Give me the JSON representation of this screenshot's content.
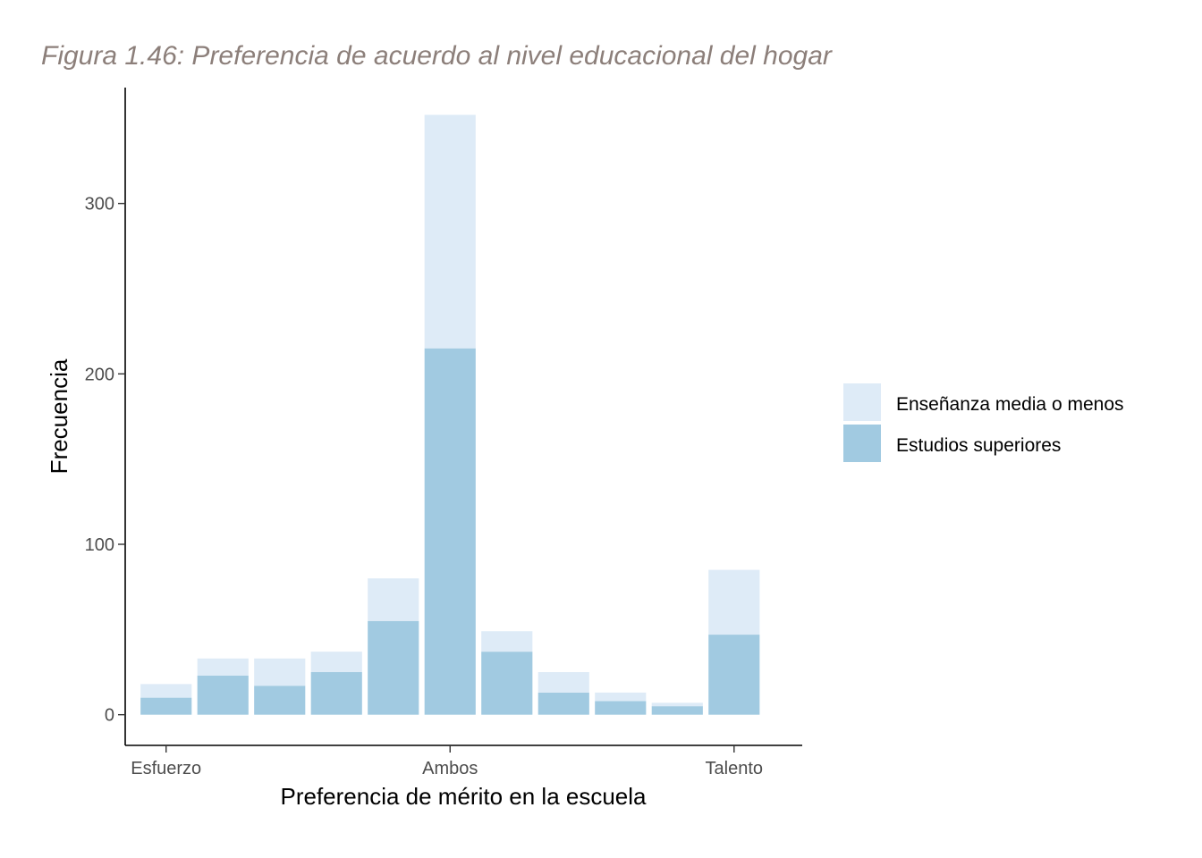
{
  "caption": "Figura 1.46: Preferencia de acuerdo al nivel educacional del hogar",
  "chart_data": {
    "type": "bar",
    "stacked": true,
    "xlabel": "Preferencia de mérito en la escuela",
    "ylabel": "Frecuencia",
    "x": [
      0,
      1,
      2,
      3,
      4,
      5,
      6,
      7,
      8,
      9,
      10
    ],
    "x_tick_labels": [
      {
        "x": 0,
        "label": "Esfuerzo"
      },
      {
        "x": 5,
        "label": "Ambos"
      },
      {
        "x": 10,
        "label": "Talento"
      }
    ],
    "y_ticks": [
      0,
      100,
      200,
      300
    ],
    "ylim": [
      -18,
      368
    ],
    "xlim": [
      -0.72,
      11.2
    ],
    "series": [
      {
        "name": "Estudios superiores",
        "color": "#a1cae1",
        "values": [
          10,
          23,
          17,
          25,
          55,
          215,
          37,
          13,
          8,
          5,
          47
        ]
      },
      {
        "name": "Enseñanza media o menos",
        "color": "#deebf7",
        "values": [
          8,
          10,
          16,
          12,
          25,
          137,
          12,
          12,
          5,
          2,
          38
        ]
      }
    ],
    "legend": {
      "position": "right",
      "items": [
        {
          "label": "Enseñanza media o menos",
          "color": "#deebf7"
        },
        {
          "label": "Estudios superiores",
          "color": "#a1cae1"
        }
      ]
    },
    "grid": false
  }
}
